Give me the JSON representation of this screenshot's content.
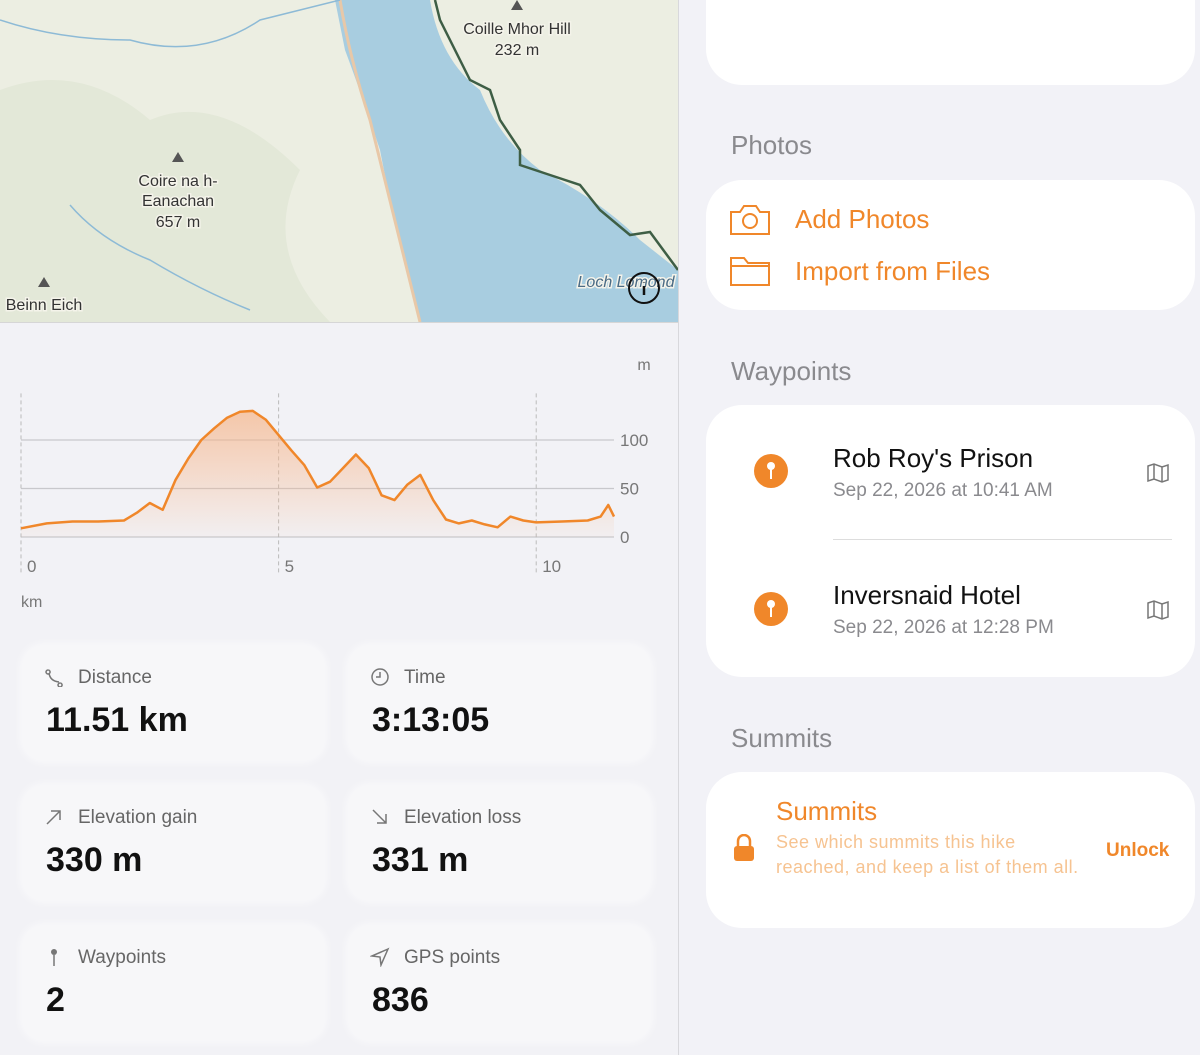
{
  "map": {
    "peak_1_name": "Coille Mhor Hill",
    "peak_1_elevation": "232 m",
    "peak_2_name_line_1": "Coire na h-",
    "peak_2_name_line_2": "Eanachan",
    "peak_2_elevation": "657 m",
    "peak_3_name": "Beinn Eich",
    "loch": "Loch Lomond"
  },
  "chart_data": {
    "type": "line",
    "x_label": "km",
    "y_label": "m",
    "color": "#f0872a",
    "x": [
      0,
      0.5,
      1.0,
      1.5,
      2.0,
      2.25,
      2.5,
      2.75,
      3.0,
      3.25,
      3.5,
      3.75,
      4.0,
      4.25,
      4.5,
      4.75,
      5.0,
      5.25,
      5.5,
      5.75,
      6.0,
      6.25,
      6.5,
      6.75,
      7.0,
      7.25,
      7.5,
      7.75,
      8.0,
      8.25,
      8.5,
      8.75,
      9.0,
      9.25,
      9.5,
      9.75,
      10.0,
      10.5,
      11.0,
      11.25,
      11.4,
      11.51
    ],
    "values": [
      9,
      14,
      16,
      16,
      17,
      25,
      35,
      28,
      59,
      81,
      100,
      112,
      123,
      129,
      130,
      121,
      105,
      89,
      74,
      51,
      57,
      71,
      85,
      71,
      43,
      38,
      54,
      64,
      38,
      18,
      14,
      17,
      13,
      10,
      21,
      17,
      15,
      16,
      17,
      21,
      33,
      21
    ],
    "xlim": [
      0,
      11.51
    ],
    "ylim": [
      0,
      148
    ],
    "xticks": [
      0,
      5,
      10
    ],
    "yticks": [
      0,
      50,
      100
    ],
    "grid": true
  },
  "stats": [
    {
      "label": "Distance",
      "value": "11.51 km"
    },
    {
      "label": "Time",
      "value": "3:13:05"
    },
    {
      "label": "Elevation gain",
      "value": "330 m"
    },
    {
      "label": "Elevation loss",
      "value": "331 m"
    },
    {
      "label": "Waypoints",
      "value": "2"
    },
    {
      "label": "GPS points",
      "value": "836"
    }
  ],
  "photos": {
    "heading": "Photos",
    "actions": [
      "Add Photos",
      "Import from Files"
    ]
  },
  "waypoints": {
    "heading": "Waypoints",
    "items": [
      {
        "name": "Rob Roy's Prison",
        "time": "Sep 22, 2026 at 10:41 AM"
      },
      {
        "name": "Inversnaid Hotel",
        "time": "Sep 22, 2026 at 12:28 PM"
      }
    ]
  },
  "summits": {
    "heading": "Summits",
    "title": "Summits",
    "description": "See which summits this hike reached, and keep a list of them all.",
    "action": "Unlock"
  }
}
